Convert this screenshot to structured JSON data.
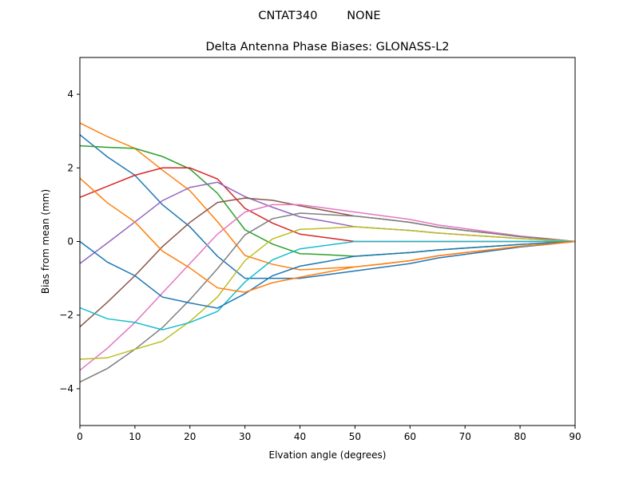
{
  "chart_data": {
    "type": "line",
    "suptitle": "CNTAT340        NONE",
    "title": "Delta Antenna Phase Biases: GLONASS-L2",
    "xlabel": "Elvation angle (degrees)",
    "ylabel": "Bias from mean (mm)",
    "x": [
      0,
      5,
      10,
      15,
      20,
      25,
      30,
      35,
      40,
      45,
      50,
      55,
      60,
      65,
      70,
      75,
      80,
      85,
      90
    ],
    "xlim": [
      0,
      90
    ],
    "xticks": [
      0,
      10,
      20,
      30,
      40,
      50,
      60,
      70,
      80,
      90
    ],
    "ylim": [
      -5,
      5
    ],
    "yticks": [
      {
        "value": -4,
        "label": "−4"
      },
      {
        "value": -2,
        "label": "−2"
      },
      0,
      2,
      4
    ],
    "series": [
      {
        "color": "#1f77b4",
        "values": [
          2.9,
          2.3,
          1.8,
          1.0,
          0.4,
          -0.4,
          -1.0,
          -1.0,
          -1.0,
          -0.9,
          -0.8,
          -0.7,
          -0.6,
          -0.45,
          -0.35,
          -0.25,
          -0.15,
          -0.08,
          0
        ]
      },
      {
        "color": "#ff7f0e",
        "values": [
          3.22,
          2.85,
          2.53,
          1.94,
          1.38,
          0.54,
          -0.38,
          -0.62,
          -0.77,
          -0.73,
          -0.69,
          -0.61,
          -0.52,
          -0.39,
          -0.3,
          -0.22,
          -0.13,
          -0.07,
          0
        ]
      },
      {
        "color": "#2ca02c",
        "values": [
          2.6,
          2.56,
          2.53,
          2.31,
          1.97,
          1.31,
          0.32,
          -0.07,
          -0.33,
          -0.36,
          -0.4,
          -0.35,
          -0.3,
          -0.23,
          -0.18,
          -0.13,
          -0.08,
          -0.04,
          0
        ]
      },
      {
        "color": "#d62728",
        "values": [
          1.2,
          1.5,
          1.8,
          2.0,
          2.0,
          1.7,
          0.9,
          0.5,
          0.2,
          0.1,
          0,
          0,
          0,
          0,
          0,
          0,
          0,
          0,
          0
        ]
      },
      {
        "color": "#9467bd",
        "values": [
          -0.6,
          -0.04,
          0.53,
          1.11,
          1.47,
          1.61,
          1.22,
          0.93,
          0.67,
          0.54,
          0.4,
          0.35,
          0.3,
          0.23,
          0.18,
          0.13,
          0.08,
          0.04,
          0
        ]
      },
      {
        "color": "#8c564b",
        "values": [
          -2.32,
          -1.65,
          -0.93,
          -0.14,
          0.52,
          1.06,
          1.18,
          1.12,
          0.97,
          0.83,
          0.69,
          0.61,
          0.52,
          0.39,
          0.3,
          0.22,
          0.13,
          0.07,
          0
        ]
      },
      {
        "color": "#e377c2",
        "values": [
          -3.5,
          -2.9,
          -2.2,
          -1.4,
          -0.6,
          0.2,
          0.8,
          1.0,
          1.0,
          0.9,
          0.8,
          0.7,
          0.6,
          0.45,
          0.35,
          0.25,
          0.15,
          0.08,
          0
        ]
      },
      {
        "color": "#7f7f7f",
        "values": [
          -3.82,
          -3.45,
          -2.93,
          -2.34,
          -1.58,
          -0.74,
          0.18,
          0.62,
          0.77,
          0.73,
          0.69,
          0.61,
          0.52,
          0.39,
          0.3,
          0.22,
          0.13,
          0.07,
          0
        ]
      },
      {
        "color": "#bcbd22",
        "values": [
          -3.2,
          -3.16,
          -2.93,
          -2.71,
          -2.17,
          -1.51,
          -0.52,
          0.07,
          0.33,
          0.36,
          0.4,
          0.35,
          0.3,
          0.23,
          0.18,
          0.13,
          0.08,
          0.04,
          0
        ]
      },
      {
        "color": "#17becf",
        "values": [
          -1.8,
          -2.1,
          -2.2,
          -2.4,
          -2.2,
          -1.9,
          -1.1,
          -0.5,
          -0.2,
          -0.1,
          0,
          0,
          0,
          0,
          0,
          0,
          0,
          0,
          0
        ]
      },
      {
        "color": "#1f77b4",
        "values": [
          0,
          -0.56,
          -0.93,
          -1.51,
          -1.67,
          -1.81,
          -1.42,
          -0.93,
          -0.67,
          -0.54,
          -0.4,
          -0.35,
          -0.3,
          -0.23,
          -0.18,
          -0.13,
          -0.08,
          -0.04,
          0
        ]
      },
      {
        "color": "#ff7f0e",
        "values": [
          1.72,
          1.05,
          0.53,
          -0.26,
          -0.72,
          -1.26,
          -1.38,
          -1.12,
          -0.97,
          -0.83,
          -0.69,
          -0.61,
          -0.52,
          -0.39,
          -0.3,
          -0.22,
          -0.13,
          -0.07,
          0
        ]
      }
    ]
  }
}
